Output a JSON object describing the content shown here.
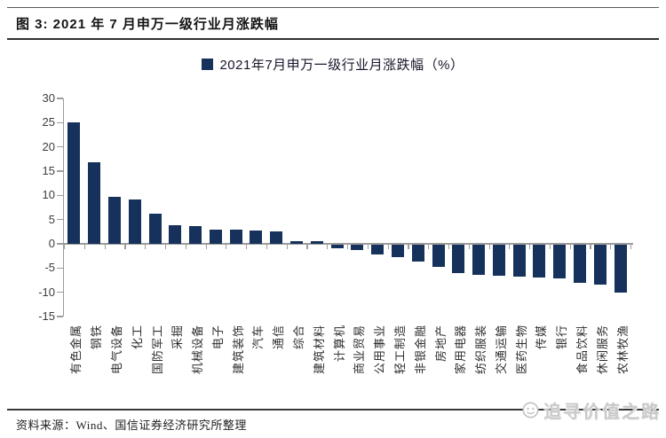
{
  "figure": {
    "title": "图 3: 2021 年 7 月申万一级行业月涨跌幅",
    "source_note": "资料来源：Wind、国信证券经济研究所整理",
    "watermark": "追寻价值之路"
  },
  "colors": {
    "bar": "#16325C",
    "axis": "#9C9C9C",
    "title_text": "#141414",
    "watermark_text": "#C9C9C9"
  },
  "chart_data": {
    "type": "bar",
    "legend_label": "2021年7月申万一级行业月涨跌幅（%）",
    "legend_position": "top-center",
    "grid": false,
    "ylim": [
      -15,
      30
    ],
    "ytick_step": 5,
    "yticks": [
      30,
      25,
      20,
      15,
      10,
      5,
      0,
      -5,
      -10,
      -15
    ],
    "xlabel": "",
    "ylabel": "",
    "categories": [
      "有色金属",
      "钢铁",
      "电气设备",
      "化工",
      "国防军工",
      "采掘",
      "机械设备",
      "电子",
      "建筑装饰",
      "汽车",
      "通信",
      "综合",
      "建筑材料",
      "计算机",
      "商业贸易",
      "公用事业",
      "轻工制造",
      "非银金融",
      "房地产",
      "家用电器",
      "纺织服装",
      "交通运输",
      "医药生物",
      "传媒",
      "银行",
      "食品饮料",
      "休闲服务",
      "农林牧渔"
    ],
    "values": [
      25.1,
      16.8,
      9.7,
      9.2,
      6.3,
      3.9,
      3.7,
      2.9,
      2.9,
      2.8,
      2.6,
      0.6,
      0.5,
      -0.8,
      -1.1,
      -2.1,
      -2.6,
      -3.5,
      -4.6,
      -5.8,
      -6.3,
      -6.4,
      -6.6,
      -6.8,
      -7.0,
      -7.9,
      -8.2,
      -9.8
    ]
  }
}
